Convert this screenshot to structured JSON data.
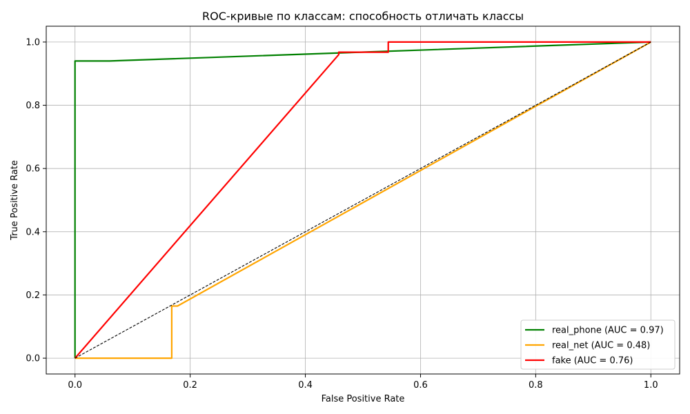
{
  "chart_data": {
    "type": "line",
    "title": "ROC-кривые по классам: способность отличать классы",
    "xlabel": "False Positive Rate",
    "ylabel": "True Positive Rate",
    "xlim": [
      -0.05,
      1.05
    ],
    "ylim": [
      -0.05,
      1.05
    ],
    "xticks": [
      0.0,
      0.2,
      0.4,
      0.6,
      0.8,
      1.0
    ],
    "yticks": [
      0.0,
      0.2,
      0.4,
      0.6,
      0.8,
      1.0
    ],
    "xtick_labels": [
      "0.0",
      "0.2",
      "0.4",
      "0.6",
      "0.8",
      "1.0"
    ],
    "ytick_labels": [
      "0.0",
      "0.2",
      "0.4",
      "0.6",
      "0.8",
      "1.0"
    ],
    "grid": true,
    "legend_position": "lower-right",
    "series": [
      {
        "name": "real_phone (AUC = 0.97)",
        "color": "#008000",
        "points": [
          [
            0.0,
            0.0
          ],
          [
            0.0,
            0.94
          ],
          [
            0.06,
            0.94
          ],
          [
            1.0,
            1.0
          ]
        ]
      },
      {
        "name": "real_net (AUC = 0.48)",
        "color": "#FFA500",
        "points": [
          [
            0.0,
            0.0
          ],
          [
            0.168,
            0.0
          ],
          [
            0.168,
            0.165
          ],
          [
            0.178,
            0.165
          ],
          [
            1.0,
            1.0
          ]
        ]
      },
      {
        "name": "fake (AUC = 0.76)",
        "color": "#FF0000",
        "points": [
          [
            0.0,
            0.0
          ],
          [
            0.458,
            0.96
          ],
          [
            0.458,
            0.968
          ],
          [
            0.544,
            0.968
          ],
          [
            0.544,
            1.0
          ],
          [
            1.0,
            1.0
          ]
        ]
      }
    ],
    "reference_line": {
      "color": "#000000",
      "style": "dashed",
      "points": [
        [
          0.0,
          0.0
        ],
        [
          1.0,
          1.0
        ]
      ]
    }
  }
}
